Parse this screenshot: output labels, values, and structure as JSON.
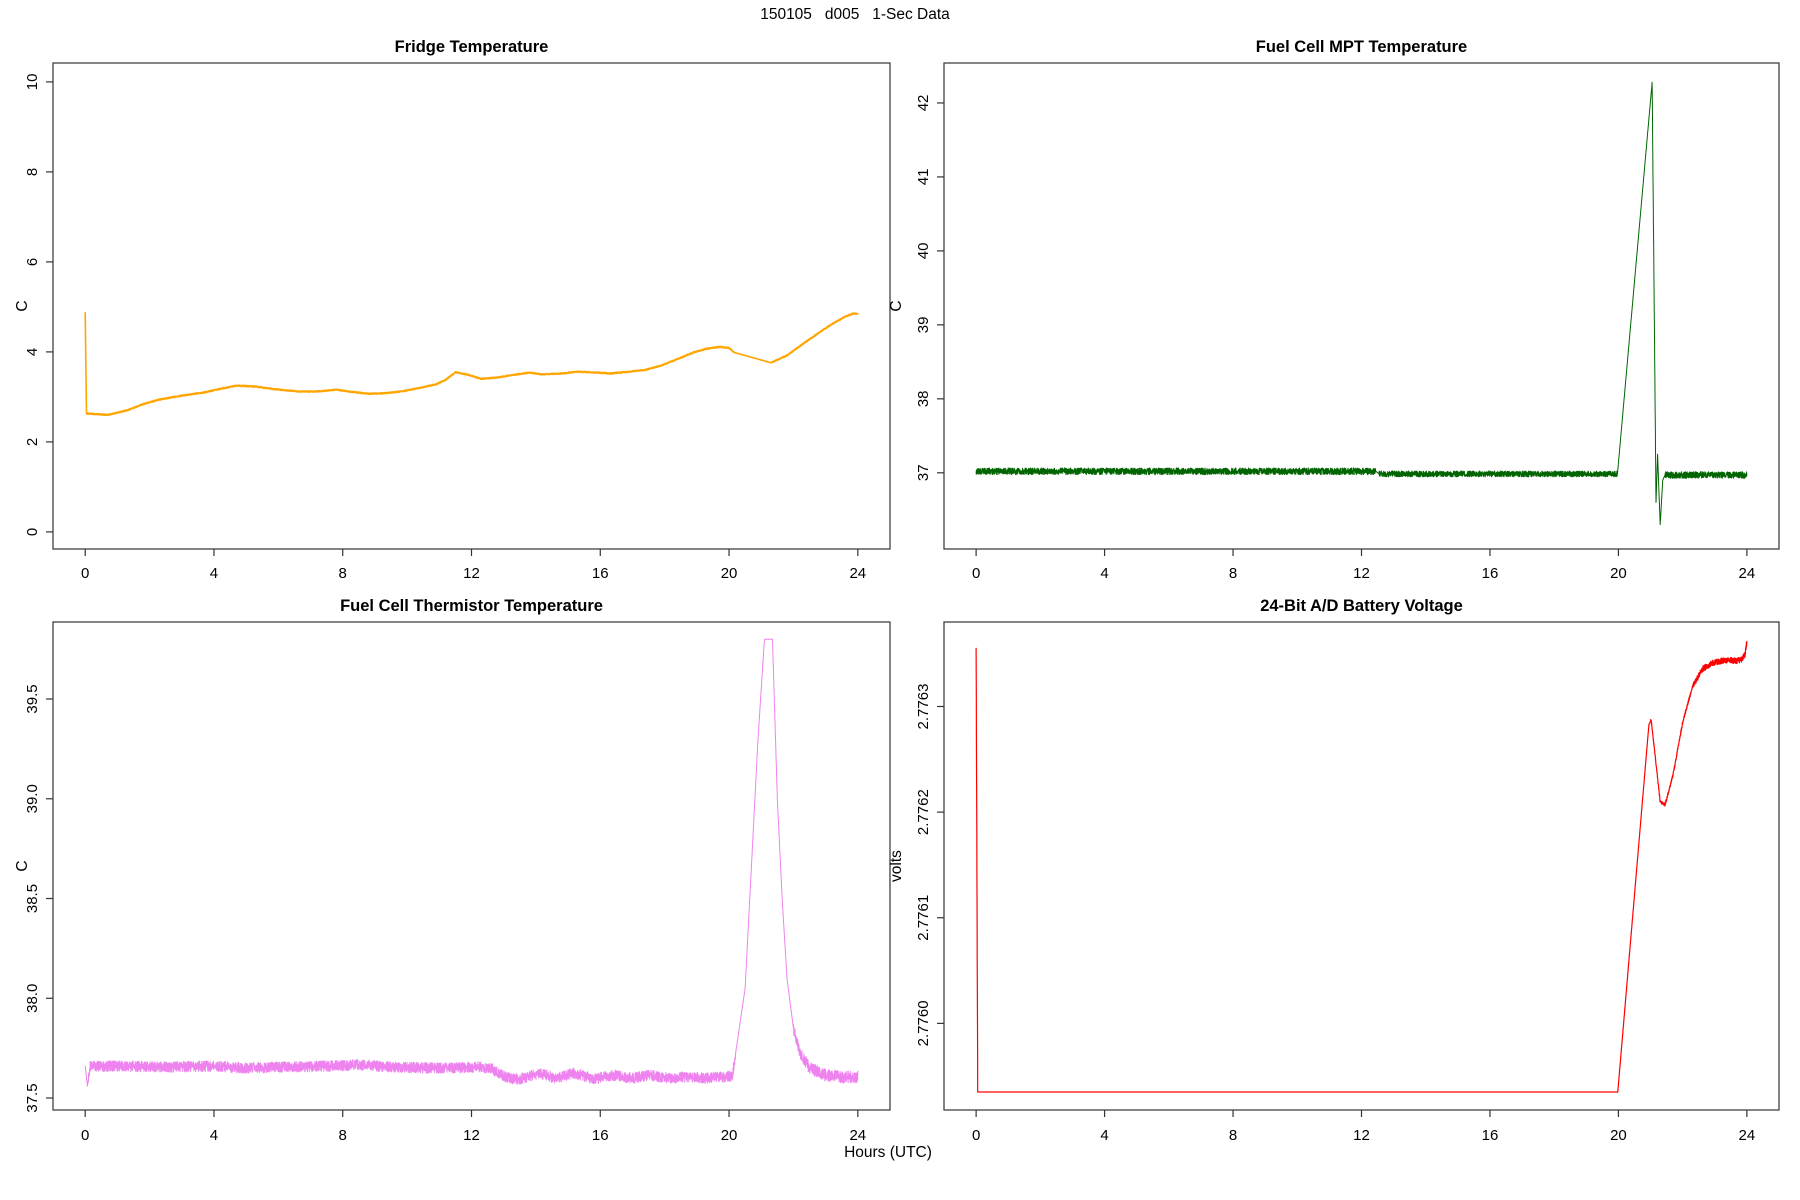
{
  "page": {
    "title": "150105   d005   1-Sec Data",
    "xlabel": "Hours (UTC)"
  },
  "chart_data": [
    {
      "type": "line",
      "title": "Fridge Temperature",
      "ylabel": "C",
      "color": "#FFA500",
      "xlim": [
        -1,
        25
      ],
      "ylim": [
        -0.38,
        10.42
      ],
      "x_ticks": [
        0,
        4,
        8,
        12,
        16,
        20,
        24
      ],
      "x_tick_labels": [
        "0",
        "4",
        "8",
        "12",
        "16",
        "20",
        "24"
      ],
      "y_ticks": [
        0,
        2,
        4,
        6,
        8,
        10
      ],
      "y_tick_labels": [
        "0",
        "2",
        "4",
        "6",
        "8",
        "10"
      ],
      "stroke_width": 1.6,
      "series": [
        {
          "waypoints": [
            [
              0,
              4.87
            ],
            [
              0.04,
              2.63
            ],
            [
              0.7,
              2.6
            ],
            [
              1.3,
              2.7
            ],
            [
              1.8,
              2.84
            ],
            [
              2.3,
              2.94
            ],
            [
              3.0,
              3.03
            ],
            [
              3.7,
              3.1
            ],
            [
              4.2,
              3.18
            ],
            [
              4.7,
              3.25
            ],
            [
              5.3,
              3.23
            ],
            [
              5.9,
              3.17
            ],
            [
              6.6,
              3.12
            ],
            [
              7.2,
              3.12
            ],
            [
              7.8,
              3.16
            ],
            [
              8.3,
              3.11
            ],
            [
              8.8,
              3.07
            ],
            [
              9.3,
              3.08
            ],
            [
              9.9,
              3.13
            ],
            [
              10.4,
              3.2
            ],
            [
              10.9,
              3.28
            ],
            [
              11.2,
              3.38
            ],
            [
              11.5,
              3.55
            ],
            [
              11.9,
              3.49
            ],
            [
              12.3,
              3.4
            ],
            [
              12.8,
              3.43
            ],
            [
              13.3,
              3.49
            ],
            [
              13.8,
              3.54
            ],
            [
              14.2,
              3.5
            ],
            [
              14.8,
              3.52
            ],
            [
              15.3,
              3.56
            ],
            [
              15.9,
              3.54
            ],
            [
              16.3,
              3.52
            ],
            [
              16.9,
              3.56
            ],
            [
              17.4,
              3.6
            ],
            [
              17.9,
              3.7
            ],
            [
              18.4,
              3.84
            ],
            [
              18.9,
              3.99
            ],
            [
              19.3,
              4.07
            ],
            [
              19.7,
              4.11
            ],
            [
              20.0,
              4.09
            ],
            [
              20.15,
              3.99
            ],
            [
              21.3,
              3.76
            ],
            [
              21.8,
              3.92
            ],
            [
              22.3,
              4.18
            ],
            [
              22.8,
              4.43
            ],
            [
              23.2,
              4.62
            ],
            [
              23.6,
              4.78
            ],
            [
              23.85,
              4.85
            ],
            [
              24,
              4.85
            ]
          ],
          "noise_band": [
            [
              0.05,
              20.15,
              0.013
            ],
            [
              21.35,
              24,
              0.013
            ]
          ]
        }
      ]
    },
    {
      "type": "line",
      "title": "Fuel Cell MPT Temperature",
      "ylabel": "C",
      "color": "#006400",
      "xlim": [
        -1,
        25
      ],
      "ylim": [
        35.97,
        42.54
      ],
      "x_ticks": [
        0,
        4,
        8,
        12,
        16,
        20,
        24
      ],
      "x_tick_labels": [
        "0",
        "4",
        "8",
        "12",
        "16",
        "20",
        "24"
      ],
      "y_ticks": [
        37,
        38,
        39,
        40,
        41,
        42
      ],
      "y_tick_labels": [
        "37",
        "38",
        "39",
        "40",
        "41",
        "42"
      ],
      "stroke_width": 1,
      "series": [
        {
          "waypoints": [
            [
              0,
              37.02
            ],
            [
              12.45,
              37.02
            ],
            [
              12.55,
              36.985
            ],
            [
              19.97,
              36.985
            ],
            [
              21.05,
              42.28
            ],
            [
              21.17,
              36.6
            ],
            [
              21.22,
              37.25
            ],
            [
              21.3,
              36.3
            ],
            [
              21.38,
              36.9
            ],
            [
              21.45,
              36.97
            ],
            [
              24,
              36.97
            ]
          ],
          "noise_band": [
            [
              0,
              12.45,
              0.045
            ],
            [
              12.55,
              19.97,
              0.04
            ],
            [
              21.45,
              24,
              0.045
            ]
          ]
        }
      ]
    },
    {
      "type": "line",
      "title": "Fuel Cell Thermistor Temperature",
      "ylabel": "C",
      "color": "#EE82EE",
      "xlim": [
        -1,
        25
      ],
      "ylim": [
        37.44,
        39.886
      ],
      "x_ticks": [
        0,
        4,
        8,
        12,
        16,
        20,
        24
      ],
      "x_tick_labels": [
        "0",
        "4",
        "8",
        "12",
        "16",
        "20",
        "24"
      ],
      "y_ticks": [
        37.5,
        38.0,
        38.5,
        39.0,
        39.5
      ],
      "y_tick_labels": [
        "37.5",
        "38.0",
        "38.5",
        "39.0",
        "39.5"
      ],
      "stroke_width": 1,
      "series": [
        {
          "waypoints": [
            [
              0,
              37.66
            ],
            [
              0.07,
              37.56
            ],
            [
              0.15,
              37.66
            ],
            [
              1,
              37.66
            ],
            [
              2.5,
              37.655
            ],
            [
              4,
              37.66
            ],
            [
              5,
              37.65
            ],
            [
              6,
              37.655
            ],
            [
              7.5,
              37.66
            ],
            [
              8.5,
              37.665
            ],
            [
              9.5,
              37.655
            ],
            [
              11,
              37.65
            ],
            [
              12.2,
              37.655
            ],
            [
              12.6,
              37.65
            ],
            [
              13.1,
              37.6
            ],
            [
              13.5,
              37.595
            ],
            [
              14.1,
              37.625
            ],
            [
              14.6,
              37.6
            ],
            [
              15.2,
              37.625
            ],
            [
              15.8,
              37.595
            ],
            [
              16.4,
              37.615
            ],
            [
              17.0,
              37.6
            ],
            [
              17.5,
              37.615
            ],
            [
              18.1,
              37.6
            ],
            [
              18.7,
              37.605
            ],
            [
              19.3,
              37.6
            ],
            [
              19.8,
              37.605
            ],
            [
              20.1,
              37.61
            ],
            [
              20.5,
              38.05
            ],
            [
              20.9,
              39.3
            ],
            [
              21.1,
              39.8
            ],
            [
              21.35,
              39.8
            ],
            [
              21.5,
              39.0
            ],
            [
              21.65,
              38.5
            ],
            [
              21.8,
              38.1
            ],
            [
              22.0,
              37.85
            ],
            [
              22.2,
              37.73
            ],
            [
              22.5,
              37.65
            ],
            [
              23.0,
              37.615
            ],
            [
              23.5,
              37.605
            ],
            [
              24,
              37.605
            ]
          ],
          "noise_band": [
            [
              0.1,
              20.2,
              0.027
            ],
            [
              22.0,
              24,
              0.03
            ]
          ]
        }
      ]
    },
    {
      "type": "line",
      "title": "24-Bit A/D Battery Voltage",
      "ylabel": "volts",
      "color": "#FF0000",
      "xlim": [
        -1,
        25
      ],
      "ylim": [
        2.775918,
        2.77638
      ],
      "x_ticks": [
        0,
        4,
        8,
        12,
        16,
        20,
        24
      ],
      "x_tick_labels": [
        "0",
        "4",
        "8",
        "12",
        "16",
        "20",
        "24"
      ],
      "y_ticks": [
        2.776,
        2.7761,
        2.7762,
        2.7763
      ],
      "y_tick_labels": [
        "2.7760",
        "2.7761",
        "2.7762",
        "2.7763"
      ],
      "stroke_width": 1.2,
      "series": [
        {
          "waypoints": [
            [
              0,
              2.776355
            ],
            [
              0.05,
              2.775935
            ],
            [
              19.98,
              2.775935
            ],
            [
              20.95,
              2.776283
            ],
            [
              21.02,
              2.776287
            ],
            [
              21.3,
              2.77621
            ],
            [
              21.45,
              2.776207
            ],
            [
              21.7,
              2.776235
            ],
            [
              22.0,
              2.776285
            ],
            [
              22.3,
              2.776318
            ],
            [
              22.6,
              2.776335
            ],
            [
              22.9,
              2.776341
            ],
            [
              23.2,
              2.776343
            ],
            [
              23.5,
              2.776344
            ],
            [
              23.7,
              2.776343
            ],
            [
              23.85,
              2.776345
            ],
            [
              23.95,
              2.77635
            ],
            [
              24,
              2.776362
            ]
          ],
          "noise_band": [
            [
              21.0,
              22.3,
              1.5e-06
            ],
            [
              22.3,
              24,
              2.8e-06
            ]
          ]
        }
      ]
    }
  ]
}
